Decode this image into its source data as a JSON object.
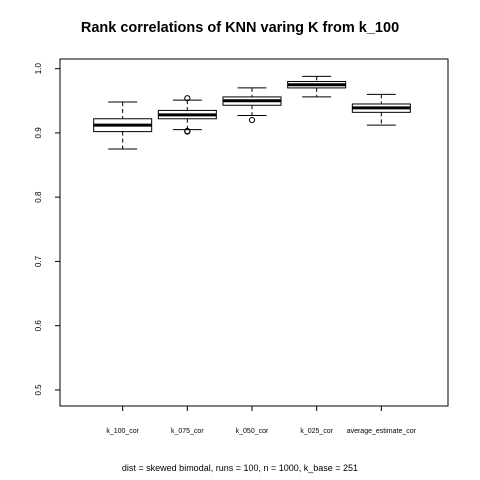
{
  "chart_data": {
    "type": "box",
    "title": "Rank correlations of KNN varing K from k_100",
    "subtitle": "dist = skewed bimodal, runs = 100, n = 1000, k_base = 251",
    "xlabel": "",
    "ylabel": "",
    "ylim": [
      0.475,
      1.015
    ],
    "y_ticks": [
      "0.5",
      "0.6",
      "0.7",
      "0.8",
      "0.9",
      "1.0"
    ],
    "grid": false,
    "categories": [
      "k_100_cor",
      "k_075_cor",
      "k_050_cor",
      "k_025_cor",
      "average_estimate_cor"
    ],
    "boxes": [
      {
        "name": "k_100_cor",
        "whisker_low": 0.875,
        "q1": 0.902,
        "median": 0.912,
        "q3": 0.922,
        "whisker_high": 0.948,
        "outliers": []
      },
      {
        "name": "k_075_cor",
        "whisker_low": 0.905,
        "q1": 0.922,
        "median": 0.928,
        "q3": 0.935,
        "whisker_high": 0.951,
        "outliers": [
          0.954,
          0.903,
          0.902
        ]
      },
      {
        "name": "k_050_cor",
        "whisker_low": 0.927,
        "q1": 0.943,
        "median": 0.95,
        "q3": 0.956,
        "whisker_high": 0.97,
        "outliers": [
          0.92
        ]
      },
      {
        "name": "k_025_cor",
        "whisker_low": 0.956,
        "q1": 0.97,
        "median": 0.975,
        "q3": 0.98,
        "whisker_high": 0.988,
        "outliers": []
      },
      {
        "name": "average_estimate_cor",
        "whisker_low": 0.912,
        "q1": 0.932,
        "median": 0.939,
        "q3": 0.945,
        "whisker_high": 0.96,
        "outliers": []
      }
    ]
  }
}
